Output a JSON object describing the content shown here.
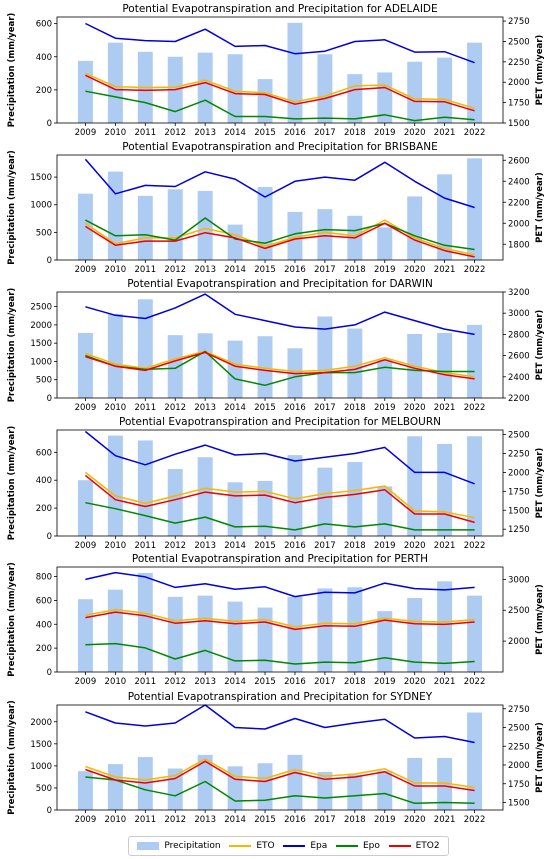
{
  "colors": {
    "Precipitation": "#aecbf2",
    "ETO": "#f5b800",
    "Epa": "#0000dd",
    "Epo": "#008800",
    "ETO2": "#ee0000"
  },
  "legend": [
    {
      "key": "Precipitation",
      "label": "Precipitation",
      "kind": "bar"
    },
    {
      "key": "ETO",
      "label": "ETO",
      "kind": "line"
    },
    {
      "key": "Epa",
      "label": "Epa",
      "kind": "line"
    },
    {
      "key": "Epo",
      "label": "Epo",
      "kind": "line"
    },
    {
      "key": "ETO2",
      "label": "ETO2",
      "kind": "line"
    }
  ],
  "chart_data": [
    {
      "type": "bar",
      "title": "Potential Evapotranspiration and Precipitation for ADELAIDE",
      "ylabel": "Precipitation (mm/year)",
      "y2label": "PET (mm/year)",
      "categories": [
        "2009",
        "2010",
        "2011",
        "2012",
        "2013",
        "2014",
        "2015",
        "2016",
        "2017",
        "2018",
        "2019",
        "2020",
        "2021",
        "2022"
      ],
      "ylim": [
        0,
        640
      ],
      "yticks": [
        0,
        200,
        400,
        600
      ],
      "y2lim": [
        1500,
        2800
      ],
      "y2ticks": [
        1500,
        1750,
        2000,
        2250,
        2500,
        2750
      ],
      "precipitation": [
        375,
        485,
        430,
        400,
        425,
        415,
        265,
        605,
        415,
        295,
        305,
        370,
        395,
        485
      ],
      "series": [
        {
          "name": "ETO",
          "values": [
            2110,
            1945,
            1935,
            1940,
            2025,
            1890,
            1870,
            1760,
            1830,
            1955,
            1965,
            1795,
            1790,
            1680
          ]
        },
        {
          "name": "Epa",
          "values": [
            2720,
            2540,
            2510,
            2500,
            2650,
            2440,
            2450,
            2350,
            2380,
            2500,
            2520,
            2370,
            2375,
            2240
          ]
        },
        {
          "name": "Epo",
          "values": [
            1890,
            1820,
            1750,
            1640,
            1780,
            1580,
            1580,
            1550,
            1560,
            1550,
            1600,
            1530,
            1570,
            1540
          ]
        },
        {
          "name": "ETO2",
          "values": [
            2085,
            1910,
            1900,
            1910,
            1995,
            1860,
            1850,
            1730,
            1800,
            1910,
            1935,
            1765,
            1760,
            1650
          ]
        }
      ]
    },
    {
      "type": "bar",
      "title": "Potential Evapotranspiration and Precipitation for BRISBANE",
      "ylabel": "Precipitation (mm/year)",
      "y2label": "PET (mm/year)",
      "categories": [
        "2009",
        "2010",
        "2011",
        "2012",
        "2013",
        "2014",
        "2015",
        "2016",
        "2017",
        "2018",
        "2019",
        "2020",
        "2021",
        "2022"
      ],
      "ylim": [
        0,
        1900
      ],
      "yticks": [
        0,
        500,
        1000,
        1500
      ],
      "y2lim": [
        1650,
        2650
      ],
      "y2ticks": [
        1800,
        2000,
        2200,
        2400,
        2600
      ],
      "precipitation": [
        1200,
        1600,
        1160,
        1280,
        1250,
        640,
        1320,
        870,
        920,
        800,
        590,
        1150,
        1550,
        1840
      ],
      "series": [
        {
          "name": "ETO",
          "values": [
            2000,
            1805,
            1860,
            1860,
            1950,
            1890,
            1780,
            1865,
            1915,
            1880,
            2030,
            1860,
            1760,
            1700
          ]
        },
        {
          "name": "Epa",
          "values": [
            2610,
            2280,
            2360,
            2350,
            2490,
            2420,
            2250,
            2400,
            2440,
            2410,
            2580,
            2400,
            2240,
            2150
          ]
        },
        {
          "name": "Epo",
          "values": [
            2030,
            1880,
            1890,
            1840,
            2050,
            1850,
            1810,
            1900,
            1940,
            1930,
            2000,
            1880,
            1790,
            1750
          ]
        },
        {
          "name": "ETO2",
          "values": [
            1970,
            1790,
            1830,
            1830,
            1910,
            1860,
            1760,
            1850,
            1880,
            1860,
            2000,
            1840,
            1740,
            1680
          ]
        }
      ]
    },
    {
      "type": "bar",
      "title": "Potential Evapotranspiration and Precipitation for DARWIN",
      "ylabel": "Precipitation (mm/year)",
      "y2label": "PET (mm/year)",
      "categories": [
        "2009",
        "2010",
        "2011",
        "2012",
        "2013",
        "2014",
        "2015",
        "2016",
        "2017",
        "2018",
        "2019",
        "2020",
        "2021",
        "2022"
      ],
      "ylim": [
        0,
        2900
      ],
      "yticks": [
        0,
        500,
        1000,
        1500,
        2000,
        2500
      ],
      "y2lim": [
        2200,
        3200
      ],
      "y2ticks": [
        2200,
        2400,
        2600,
        2800,
        3000,
        3200
      ],
      "precipitation": [
        1780,
        2300,
        2700,
        1720,
        1770,
        1570,
        1690,
        1360,
        2230,
        1900,
        1070,
        1750,
        1780,
        2000
      ],
      "series": [
        {
          "name": "ETO",
          "values": [
            2620,
            2520,
            2480,
            2570,
            2640,
            2520,
            2480,
            2450,
            2460,
            2500,
            2580,
            2500,
            2440,
            2400
          ]
        },
        {
          "name": "Epa",
          "values": [
            3060,
            2980,
            2950,
            3050,
            3180,
            2990,
            2930,
            2870,
            2850,
            2890,
            3010,
            2930,
            2850,
            2800
          ]
        },
        {
          "name": "Epo",
          "values": [
            2600,
            2500,
            2470,
            2480,
            2640,
            2380,
            2320,
            2400,
            2440,
            2440,
            2490,
            2460,
            2450,
            2450
          ]
        },
        {
          "name": "ETO2",
          "values": [
            2590,
            2500,
            2460,
            2550,
            2630,
            2500,
            2460,
            2430,
            2440,
            2470,
            2560,
            2480,
            2420,
            2380
          ]
        }
      ]
    },
    {
      "type": "bar",
      "title": "Potential Evapotranspiration and Precipitation for MELBOURN",
      "ylabel": "Precipitation (mm/year)",
      "y2label": "PET (mm/year)",
      "categories": [
        "2009",
        "2010",
        "2011",
        "2012",
        "2013",
        "2014",
        "2015",
        "2016",
        "2017",
        "2018",
        "2019",
        "2020",
        "2021",
        "2022"
      ],
      "ylim": [
        0,
        760
      ],
      "yticks": [
        0,
        200,
        400,
        600
      ],
      "y2lim": [
        1160,
        2560
      ],
      "y2ticks": [
        1250,
        1500,
        1750,
        2000,
        2250,
        2500
      ],
      "precipitation": [
        400,
        720,
        685,
        480,
        565,
        385,
        395,
        580,
        490,
        530,
        355,
        715,
        660,
        715
      ],
      "series": [
        {
          "name": "ETO",
          "values": [
            2000,
            1690,
            1590,
            1690,
            1790,
            1740,
            1750,
            1650,
            1720,
            1760,
            1820,
            1490,
            1480,
            1400
          ]
        },
        {
          "name": "Epa",
          "values": [
            2540,
            2220,
            2100,
            2240,
            2360,
            2230,
            2250,
            2150,
            2200,
            2250,
            2330,
            2000,
            2000,
            1850
          ]
        },
        {
          "name": "Epo",
          "values": [
            1600,
            1520,
            1430,
            1330,
            1410,
            1280,
            1290,
            1240,
            1320,
            1280,
            1320,
            1240,
            1240,
            1240
          ]
        },
        {
          "name": "ETO2",
          "values": [
            1960,
            1640,
            1550,
            1640,
            1740,
            1690,
            1700,
            1600,
            1670,
            1710,
            1770,
            1450,
            1450,
            1340
          ]
        }
      ]
    },
    {
      "type": "bar",
      "title": "Potential Evapotranspiration and Precipitation for PERTH",
      "ylabel": "Precipitation (mm/year)",
      "y2label": "PET (mm/year)",
      "categories": [
        "2009",
        "2010",
        "2011",
        "2012",
        "2013",
        "2014",
        "2015",
        "2016",
        "2017",
        "2018",
        "2019",
        "2020",
        "2021",
        "2022"
      ],
      "ylim": [
        0,
        880
      ],
      "yticks": [
        0,
        200,
        400,
        600,
        800
      ],
      "y2lim": [
        1500,
        3200
      ],
      "y2ticks": [
        2000,
        2500,
        3000
      ],
      "precipitation": [
        610,
        690,
        830,
        630,
        640,
        590,
        540,
        630,
        700,
        710,
        510,
        620,
        760,
        640
      ],
      "series": [
        {
          "name": "ETO",
          "values": [
            2420,
            2510,
            2450,
            2330,
            2370,
            2320,
            2350,
            2230,
            2290,
            2280,
            2370,
            2320,
            2310,
            2350
          ]
        },
        {
          "name": "Epa",
          "values": [
            3000,
            3110,
            3040,
            2870,
            2930,
            2840,
            2880,
            2720,
            2790,
            2780,
            2940,
            2850,
            2830,
            2870
          ]
        },
        {
          "name": "Epo",
          "values": [
            1940,
            1960,
            1890,
            1710,
            1850,
            1680,
            1690,
            1630,
            1660,
            1650,
            1730,
            1660,
            1640,
            1670
          ]
        },
        {
          "name": "ETO2",
          "values": [
            2380,
            2470,
            2410,
            2290,
            2330,
            2280,
            2310,
            2190,
            2250,
            2240,
            2340,
            2280,
            2270,
            2310
          ]
        }
      ]
    },
    {
      "type": "bar",
      "title": "Potential Evapotranspiration and Precipitation for SYDNEY",
      "ylabel": "Precipitation (mm/year)",
      "y2label": "PET (mm/year)",
      "categories": [
        "2009",
        "2010",
        "2011",
        "2012",
        "2013",
        "2014",
        "2015",
        "2016",
        "2017",
        "2018",
        "2019",
        "2020",
        "2021",
        "2022"
      ],
      "ylim": [
        0,
        2380
      ],
      "yticks": [
        0,
        500,
        1000,
        1500,
        2000
      ],
      "y2lim": [
        1400,
        2800
      ],
      "y2ticks": [
        1500,
        1750,
        2000,
        2250,
        2500,
        2750
      ],
      "precipitation": [
        880,
        1040,
        1200,
        940,
        1250,
        990,
        1060,
        1250,
        860,
        800,
        890,
        1180,
        1180,
        2210
      ],
      "series": [
        {
          "name": "ETO",
          "values": [
            1980,
            1840,
            1800,
            1860,
            2080,
            1850,
            1820,
            1940,
            1850,
            1880,
            1950,
            1760,
            1760,
            1700
          ]
        },
        {
          "name": "Epa",
          "values": [
            2710,
            2560,
            2520,
            2560,
            2800,
            2500,
            2480,
            2620,
            2500,
            2560,
            2610,
            2360,
            2380,
            2300
          ]
        },
        {
          "name": "Epo",
          "values": [
            1840,
            1800,
            1670,
            1590,
            1780,
            1520,
            1530,
            1590,
            1560,
            1590,
            1620,
            1490,
            1500,
            1490
          ]
        },
        {
          "name": "ETO2",
          "values": [
            1940,
            1800,
            1760,
            1820,
            2050,
            1810,
            1780,
            1900,
            1810,
            1840,
            1910,
            1720,
            1720,
            1660
          ]
        }
      ]
    }
  ]
}
